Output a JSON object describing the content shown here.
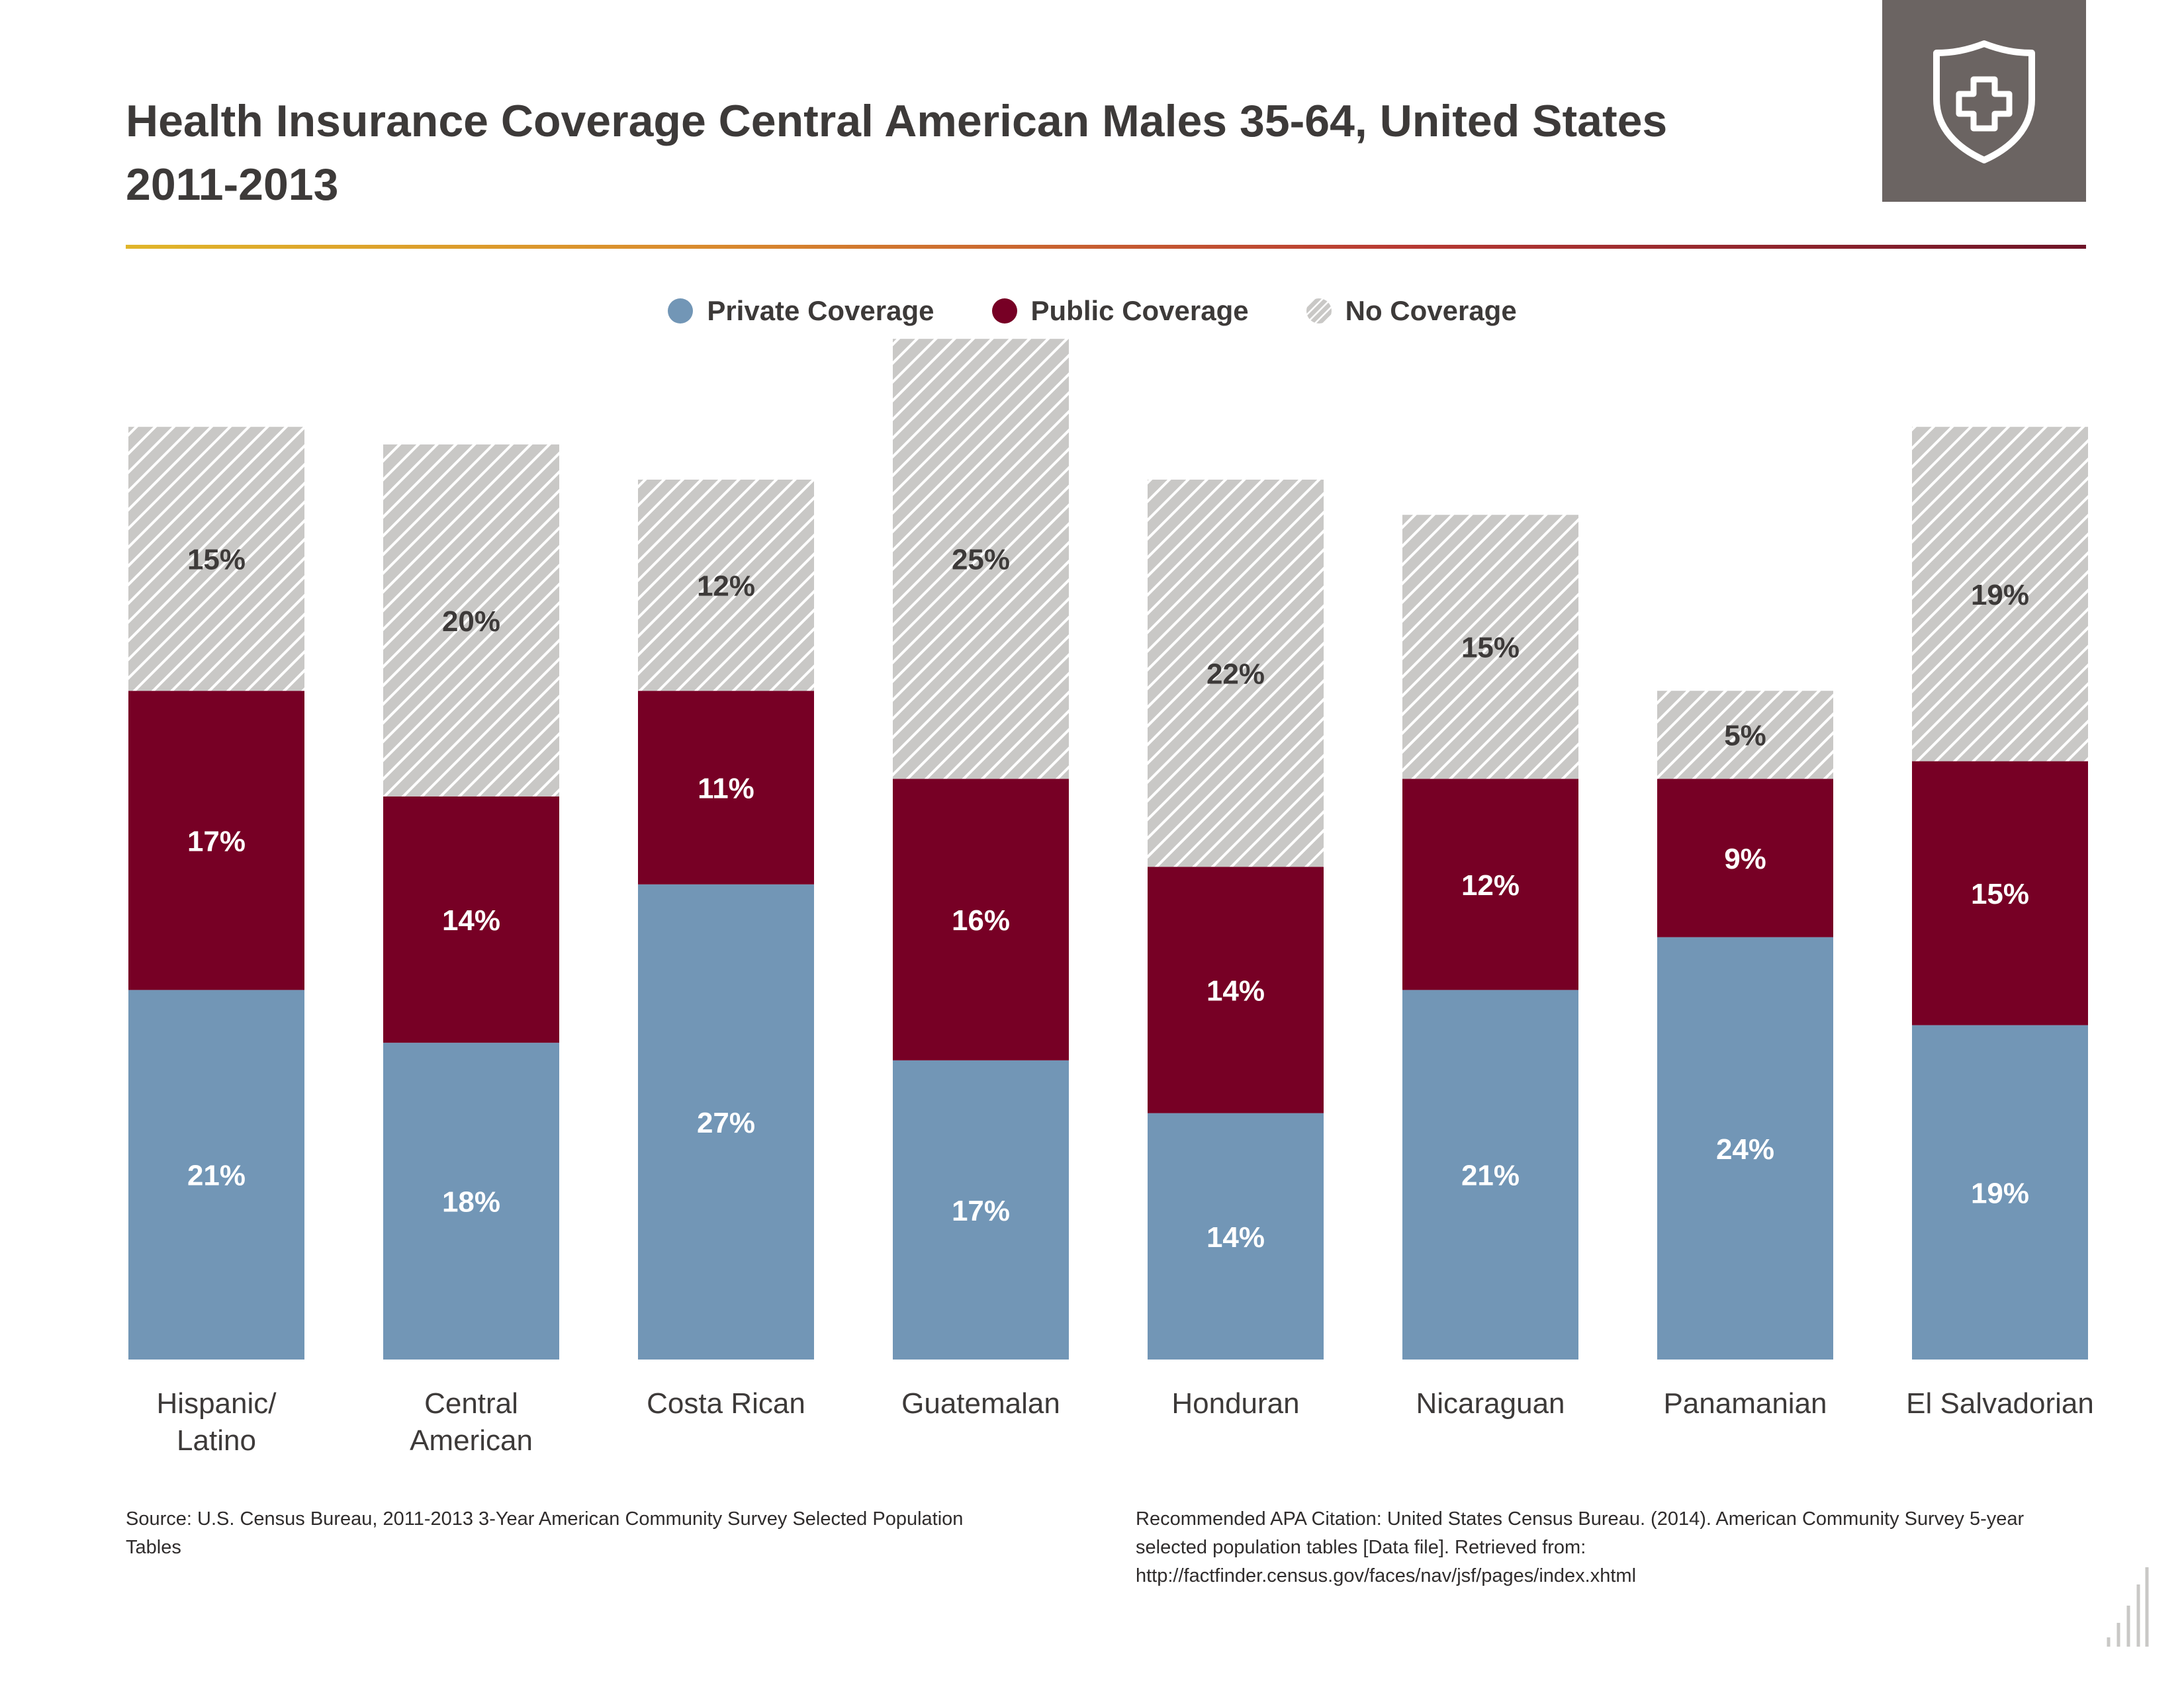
{
  "title": "Health Insurance Coverage Central American Males 35-64, United States 2011-2013",
  "badge_icon": "shield-plus-icon",
  "colors": {
    "private": "#7296b6",
    "public": "#770025",
    "none": "#c9c8c6",
    "rule_gradient": [
      "#e0b52a",
      "#b83a33",
      "#6e1428"
    ],
    "badge_bg": "#6b6462"
  },
  "legend": [
    {
      "label": "Private Coverage",
      "series": "private"
    },
    {
      "label": "Public Coverage",
      "series": "public"
    },
    {
      "label": "No Coverage",
      "series": "none"
    }
  ],
  "chart_data": {
    "type": "bar",
    "stacked": true,
    "categories": [
      [
        "Hispanic/",
        "Latino"
      ],
      [
        "Central",
        "American"
      ],
      [
        "Costa Rican"
      ],
      [
        "Guatemalan"
      ],
      [
        "Honduran"
      ],
      [
        "Nicaraguan"
      ],
      [
        "Panamanian"
      ],
      [
        "El Salvadorian"
      ]
    ],
    "series": [
      {
        "name": "Private Coverage",
        "key": "private",
        "values": [
          21,
          18,
          27,
          17,
          14,
          21,
          24,
          19
        ],
        "labels": [
          "21%",
          "18%",
          "27%",
          "17%",
          "14%",
          "21%",
          "24%",
          "19%"
        ]
      },
      {
        "name": "Public Coverage",
        "key": "public",
        "values": [
          17,
          14,
          11,
          16,
          14,
          12,
          9,
          15
        ],
        "labels": [
          "17%",
          "14%",
          "11%",
          "16%",
          "14%",
          "12%",
          "9%",
          "15%"
        ]
      },
      {
        "name": "No Coverage",
        "key": "none",
        "values": [
          15,
          20,
          12,
          25,
          22,
          15,
          5,
          19
        ],
        "labels": [
          "15%",
          "20%",
          "12%",
          "25%",
          "22%",
          "15%",
          "5%",
          "19%"
        ]
      }
    ],
    "unit": "%",
    "xlabel": "",
    "ylabel": "",
    "grid": false,
    "legend_position": "top-center",
    "ylim": [
      0,
      100
    ]
  },
  "footnotes": {
    "source": "Source: U.S. Census Bureau, 2011-2013 3-Year American Community Survey Selected Population Tables",
    "citation": "Recommended APA Citation: United States Census Bureau. (2014). American Community Survey 5-year selected population tables [Data file]. Retrieved from: http://factfinder.census.gov/faces/nav/jsf/pages/index.xhtml"
  },
  "corner_icon": "bar-chart-watermark-icon"
}
